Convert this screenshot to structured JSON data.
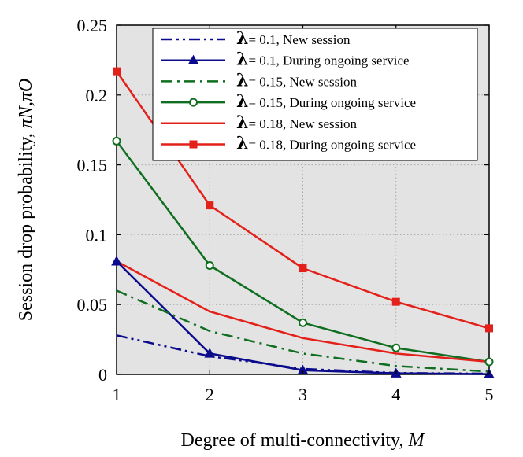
{
  "chart_data": {
    "type": "line",
    "xlabel": "Degree of multi-connectivity, ",
    "xlabel_symbol": "M",
    "ylabel": "Session drop probability, ",
    "ylabel_symbol": "πN,πO",
    "x": [
      1,
      2,
      3,
      4,
      5
    ],
    "xlim": [
      1,
      5
    ],
    "ylim": [
      0,
      0.25
    ],
    "xticks": [
      "1",
      "2",
      "3",
      "4",
      "5"
    ],
    "yticks": [
      "0",
      "0.05",
      "0.1",
      "0.15",
      "0.2",
      "0.25"
    ],
    "ytick_values": [
      0,
      0.05,
      0.1,
      0.15,
      0.2,
      0.25
    ],
    "grid": true,
    "legend_position": "top-right",
    "series": [
      {
        "name": "λ = 0.1, New session",
        "lambda_symbol": "λ",
        "legend_label": "= 0.1,   New session",
        "color": "#0a0a8c",
        "dash": "dashdotdot",
        "marker": "none",
        "values": [
          0.028,
          0.013,
          0.004,
          0.001,
          0.0005
        ]
      },
      {
        "name": "λ = 0.1, During ongoing service",
        "lambda_symbol": "λ",
        "legend_label": "= 0.1,   During ongoing service",
        "color": "#0a0a8c",
        "dash": "solid",
        "marker": "triangle",
        "values": [
          0.081,
          0.015,
          0.003,
          0.0008,
          0.0002
        ]
      },
      {
        "name": "λ = 0.15, New session",
        "lambda_symbol": "λ",
        "legend_label": "= 0.15, New session",
        "color": "#0f6e1f",
        "dash": "dashdot",
        "marker": "none",
        "values": [
          0.06,
          0.031,
          0.015,
          0.006,
          0.002
        ]
      },
      {
        "name": "λ = 0.15, During ongoing service",
        "lambda_symbol": "λ",
        "legend_label": "= 0.15, During ongoing service",
        "color": "#0f6e1f",
        "dash": "solid",
        "marker": "circle",
        "values": [
          0.167,
          0.078,
          0.037,
          0.019,
          0.009
        ]
      },
      {
        "name": "λ = 0.18, New session",
        "lambda_symbol": "λ",
        "legend_label": "= 0.18, New session",
        "color": "#e3211a",
        "dash": "solid",
        "marker": "none",
        "values": [
          0.081,
          0.045,
          0.026,
          0.015,
          0.009
        ]
      },
      {
        "name": "λ = 0.18, During ongoing service",
        "lambda_symbol": "λ",
        "legend_label": "= 0.18, During ongoing service",
        "color": "#e3211a",
        "dash": "solid",
        "marker": "square",
        "values": [
          0.217,
          0.121,
          0.076,
          0.052,
          0.033
        ]
      }
    ]
  }
}
